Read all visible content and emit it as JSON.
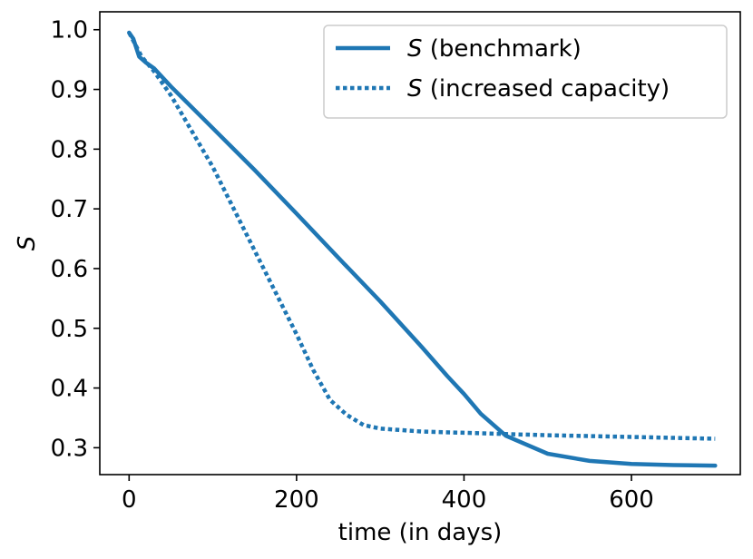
{
  "chart_data": {
    "type": "line",
    "title": "",
    "xlabel": "time (in days)",
    "ylabel": "S",
    "xlim": [
      -35,
      730
    ],
    "ylim": [
      0.255,
      1.03
    ],
    "xticks": [
      0,
      200,
      400,
      600
    ],
    "xtick_labels": [
      "0",
      "200",
      "400",
      "600"
    ],
    "yticks": [
      0.3,
      0.4,
      0.5,
      0.6,
      0.7,
      0.8,
      0.9,
      1.0
    ],
    "ytick_labels": [
      "0.3",
      "0.4",
      "0.5",
      "0.6",
      "0.7",
      "0.8",
      "0.9",
      "1.0"
    ],
    "grid": false,
    "legend_position": "top-right",
    "color": "#1f77b4",
    "series": [
      {
        "name_symbol": "S",
        "name_suffix": " (benchmark)",
        "style": "solid",
        "x": [
          0,
          5,
          12,
          20,
          30,
          50,
          100,
          150,
          200,
          250,
          300,
          350,
          380,
          400,
          420,
          450,
          500,
          550,
          600,
          650,
          700
        ],
        "y": [
          0.995,
          0.985,
          0.955,
          0.945,
          0.935,
          0.905,
          0.835,
          0.765,
          0.692,
          0.618,
          0.545,
          0.468,
          0.42,
          0.39,
          0.357,
          0.32,
          0.29,
          0.278,
          0.273,
          0.271,
          0.27
        ]
      },
      {
        "name_symbol": "S",
        "name_suffix": " (increased capacity)",
        "style": "dotted",
        "x": [
          0,
          15,
          30,
          50,
          100,
          150,
          200,
          220,
          240,
          260,
          280,
          300,
          350,
          400,
          450,
          500,
          600,
          700
        ],
        "y": [
          0.995,
          0.955,
          0.93,
          0.89,
          0.77,
          0.63,
          0.49,
          0.43,
          0.38,
          0.355,
          0.338,
          0.332,
          0.327,
          0.325,
          0.323,
          0.321,
          0.318,
          0.315
        ]
      }
    ]
  }
}
